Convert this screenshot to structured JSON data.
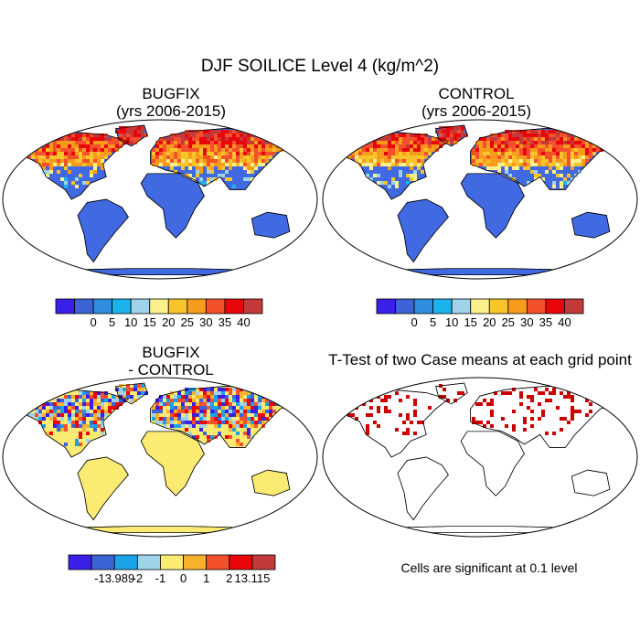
{
  "figure": {
    "title": "DJF SOILICE Level 4 (kg/m^2)"
  },
  "panels": {
    "bugfix": {
      "title_line1": "BUGFIX",
      "title_line2": "(yrs 2006-2015)"
    },
    "control": {
      "title_line1": "CONTROL",
      "title_line2": "(yrs 2006-2015)"
    },
    "diff": {
      "title_line1": "BUGFIX",
      "title_line2": "- CONTROL"
    },
    "ttest": {
      "title": "T-Test of two Case means at each grid point",
      "note": "Cells are significant at 0.1 level"
    }
  },
  "colors": {
    "ocean": "#ffffff",
    "land_low": "#4169e1",
    "diff_zero": "#fbeb73",
    "significant": "#cc0000",
    "coast": "#000000"
  },
  "chart_data": [
    {
      "type": "heatmap",
      "name_key": "bugfix",
      "projection": "Robinson",
      "colorbar": {
        "colors": [
          "#3a1fe8",
          "#3c64d6",
          "#2f8de0",
          "#1bb3eb",
          "#9ed3ea",
          "#fbf08c",
          "#f8c42c",
          "#f79b1c",
          "#f4502b",
          "#e8060b",
          "#c23a3a"
        ],
        "labels": [
          "0",
          "5",
          "10",
          "15",
          "20",
          "25",
          "30",
          "35",
          "40"
        ]
      }
    },
    {
      "type": "heatmap",
      "name_key": "control",
      "projection": "Robinson",
      "colorbar": {
        "colors": [
          "#3a1fe8",
          "#3c64d6",
          "#2f8de0",
          "#1bb3eb",
          "#9ed3ea",
          "#fbf08c",
          "#f8c42c",
          "#f79b1c",
          "#f4502b",
          "#e8060b",
          "#c23a3a"
        ],
        "labels": [
          "0",
          "5",
          "10",
          "15",
          "20",
          "25",
          "30",
          "35",
          "40"
        ]
      }
    },
    {
      "type": "heatmap",
      "name_key": "diff",
      "projection": "Robinson",
      "colorbar": {
        "colors": [
          "#3a1fe8",
          "#3c64d6",
          "#1aa3e8",
          "#9ed3ea",
          "#fbeb73",
          "#f8b12c",
          "#f4502b",
          "#e8060b",
          "#c23a3a"
        ],
        "labels": [
          "-13.989",
          "-2",
          "-1",
          "0",
          "1",
          "2",
          "13.115"
        ]
      }
    },
    {
      "type": "heatmap",
      "name_key": "ttest",
      "projection": "Robinson",
      "significance_level": 0.1
    }
  ]
}
